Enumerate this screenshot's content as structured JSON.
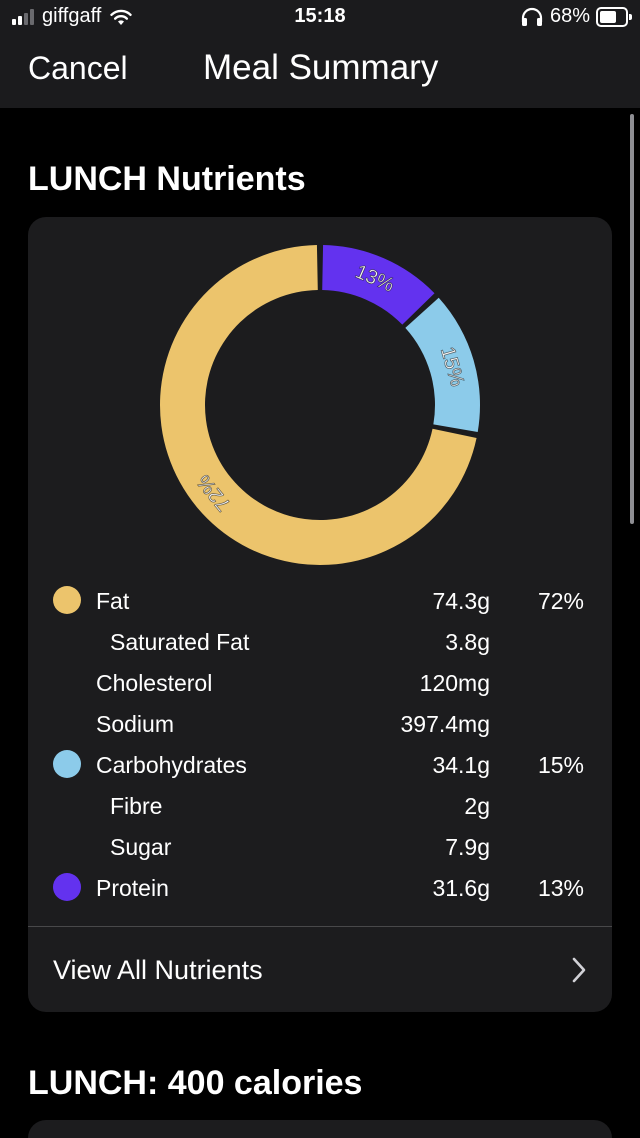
{
  "status_bar": {
    "carrier": "giffgaff",
    "time": "15:18",
    "battery_percent": "68%",
    "battery_level": 0.68,
    "signal_bars_filled": 2,
    "signal_bars_total": 4
  },
  "nav": {
    "cancel_label": "Cancel",
    "title": "Meal Summary"
  },
  "nutrients_section": {
    "heading": "LUNCH Nutrients",
    "view_all_label": "View All Nutrients"
  },
  "calories_section": {
    "heading": "LUNCH: 400 calories"
  },
  "colors": {
    "fat": "#ecc46c",
    "carbohydrates": "#8ccbea",
    "protein": "#6332ef",
    "card_background": "#1c1c1e",
    "bar_background": "#1b1b1d"
  },
  "nutrients": [
    {
      "name": "Fat",
      "amount": "74.3g",
      "percent": "72%",
      "dot": "fat",
      "sub": false
    },
    {
      "name": "Saturated Fat",
      "amount": "3.8g",
      "percent": "",
      "dot": null,
      "sub": true
    },
    {
      "name": "Cholesterol",
      "amount": "120mg",
      "percent": "",
      "dot": null,
      "sub": false
    },
    {
      "name": "Sodium",
      "amount": "397.4mg",
      "percent": "",
      "dot": null,
      "sub": false
    },
    {
      "name": "Carbohydrates",
      "amount": "34.1g",
      "percent": "15%",
      "dot": "carbohydrates",
      "sub": false
    },
    {
      "name": "Fibre",
      "amount": "2g",
      "percent": "",
      "dot": null,
      "sub": true
    },
    {
      "name": "Sugar",
      "amount": "7.9g",
      "percent": "",
      "dot": null,
      "sub": true
    },
    {
      "name": "Protein",
      "amount": "31.6g",
      "percent": "13%",
      "dot": "protein",
      "sub": false
    }
  ],
  "chart_data": {
    "type": "pie",
    "donut": true,
    "categories": [
      "Protein",
      "Carbohydrates",
      "Fat"
    ],
    "values": [
      13,
      15,
      72
    ],
    "labels": [
      "13%",
      "15%",
      "72%"
    ],
    "colors": [
      "#6332ef",
      "#8ccbea",
      "#ecc46c"
    ],
    "title": ""
  }
}
